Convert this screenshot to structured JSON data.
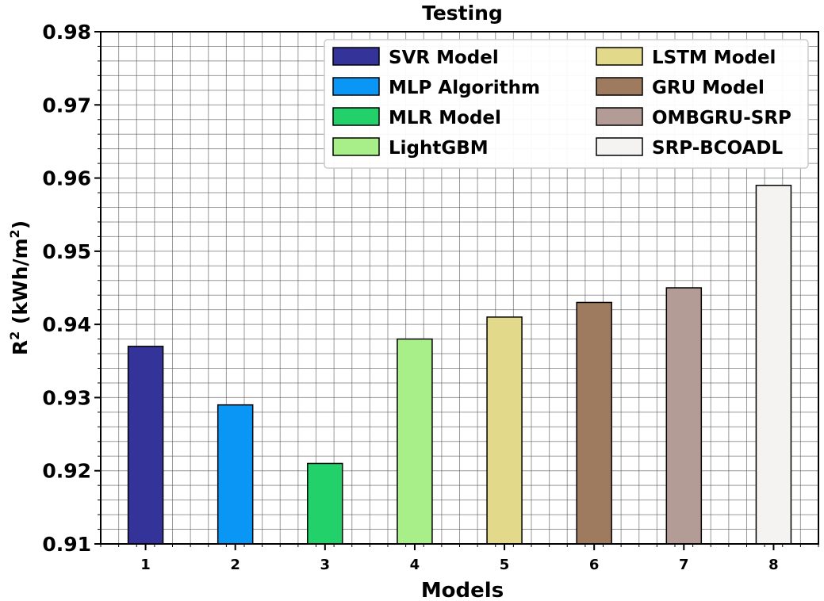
{
  "chart_data": {
    "type": "bar",
    "title": "Testing",
    "xlabel": "Models",
    "ylabel_main": "R",
    "ylabel_sup": "2",
    "ylabel_unit_open": " (kWh/m",
    "ylabel_unit_sup": "2",
    "ylabel_unit_close": ")",
    "categories": [
      "1",
      "2",
      "3",
      "4",
      "5",
      "6",
      "7",
      "8"
    ],
    "values": [
      0.937,
      0.929,
      0.921,
      0.938,
      0.941,
      0.943,
      0.945,
      0.959
    ],
    "series_names": [
      "SVR Model",
      "MLP Algorithm",
      "MLR Model",
      "LightGBM",
      "LSTM Model",
      "GRU Model",
      "OMBGRU-SRP",
      "SRP-BCOADL"
    ],
    "colors": [
      "#333399",
      "#0a96f5",
      "#22d16a",
      "#a8ef8a",
      "#e2d98a",
      "#9e7b5e",
      "#b39c95",
      "#f5f3f1"
    ],
    "ylim": [
      0.91,
      0.98
    ],
    "yticks": [
      "0.91",
      "0.92",
      "0.93",
      "0.94",
      "0.95",
      "0.96",
      "0.97",
      "0.98"
    ],
    "grid": true,
    "legend_position": "top-right",
    "legend_columns": 2
  }
}
